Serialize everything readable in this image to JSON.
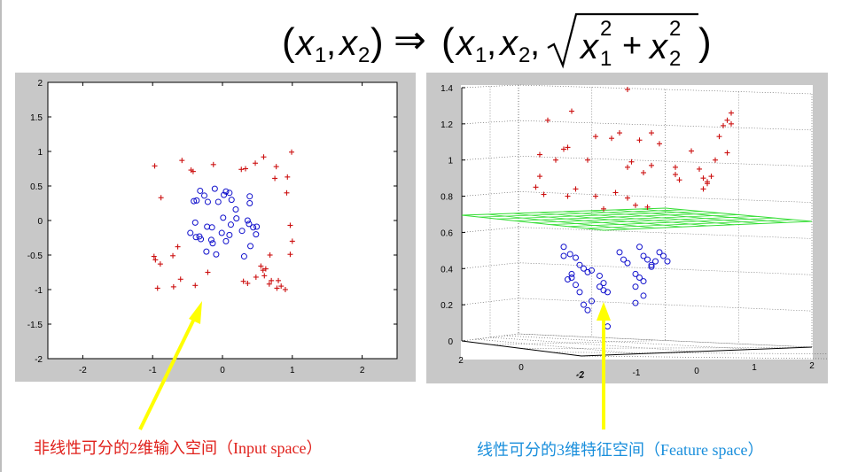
{
  "formula": {
    "lhs_x1": "x",
    "lhs_sub1": "1",
    "lhs_x2": "x",
    "lhs_sub2": "2",
    "arrow": "⇒",
    "rhs_x1": "x",
    "rhs_sub1": "1",
    "rhs_x2": "x",
    "rhs_sub2": "2",
    "sqrt_x1": "x",
    "sqrt_sub1": "1",
    "sqrt_sup1": "2",
    "plus": "+",
    "sqrt_x2": "x",
    "sqrt_sub2": "2",
    "sqrt_sup2": "2"
  },
  "captions": {
    "left": "非线性可分的2维输入空间（Input space）",
    "right": "线性可分的3维特征空间（Feature space）"
  },
  "colors": {
    "plus_marker": "#cc1010",
    "circle_marker": "#1010cc",
    "plane": "#33dd33",
    "arrow": "#ffff00",
    "caption_left": "#e0201b",
    "caption_right": "#1a8fdc"
  },
  "chart_data": [
    {
      "type": "scatter",
      "xlim": [
        -2.5,
        2.5
      ],
      "ylim": [
        -2,
        2
      ],
      "xticks": [
        -2,
        -1,
        0,
        1,
        2
      ],
      "yticks": [
        -2,
        -1.5,
        -1,
        -0.5,
        0,
        0.5,
        1,
        1.5,
        2
      ],
      "xtick_labels": [
        "-2",
        "-1",
        "0",
        "1",
        "2"
      ],
      "ytick_labels": [
        "-2",
        "-1.5",
        "-1",
        "-0.5",
        "0",
        "0.5",
        "1",
        "1.5",
        "2"
      ],
      "grid": false,
      "series": [
        {
          "marker": "plus",
          "points": [
            [
              -0.97,
              0.79
            ],
            [
              -0.88,
              0.33
            ],
            [
              -0.58,
              0.87
            ],
            [
              -0.45,
              0.73
            ],
            [
              -0.42,
              0.71
            ],
            [
              -0.13,
              0.81
            ],
            [
              0.27,
              0.74
            ],
            [
              0.33,
              0.75
            ],
            [
              0.47,
              0.83
            ],
            [
              0.59,
              0.92
            ],
            [
              0.77,
              0.78
            ],
            [
              0.75,
              0.61
            ],
            [
              0.93,
              0.63
            ],
            [
              0.99,
              0.99
            ],
            [
              0.92,
              0.4
            ],
            [
              0.97,
              -0.07
            ],
            [
              1.0,
              -0.3
            ],
            [
              0.97,
              -0.49
            ],
            [
              0.68,
              -0.5
            ],
            [
              -0.98,
              -0.52
            ],
            [
              -0.96,
              -0.57
            ],
            [
              -0.89,
              -0.63
            ],
            [
              -0.71,
              -0.51
            ],
            [
              -0.64,
              -0.38
            ],
            [
              -0.93,
              -0.98
            ],
            [
              -0.7,
              -0.96
            ],
            [
              -0.6,
              -0.85
            ],
            [
              -0.39,
              -0.94
            ],
            [
              -0.21,
              -0.75
            ],
            [
              0.3,
              -0.88
            ],
            [
              0.36,
              -0.91
            ],
            [
              0.48,
              -0.82
            ],
            [
              0.55,
              -0.66
            ],
            [
              0.58,
              -0.72
            ],
            [
              0.6,
              -0.8
            ],
            [
              0.67,
              -0.92
            ],
            [
              0.7,
              -0.87
            ],
            [
              0.8,
              -0.87
            ],
            [
              0.84,
              -0.95
            ],
            [
              0.9,
              -1.0
            ],
            [
              0.78,
              -0.98
            ],
            [
              0.62,
              -0.7
            ]
          ]
        },
        {
          "marker": "circle",
          "points": [
            [
              -0.41,
              0.28
            ],
            [
              -0.37,
              0.29
            ],
            [
              -0.32,
              0.43
            ],
            [
              -0.26,
              0.36
            ],
            [
              -0.21,
              0.27
            ],
            [
              -0.11,
              0.46
            ],
            [
              -0.06,
              0.27
            ],
            [
              0.02,
              0.37
            ],
            [
              0.05,
              0.42
            ],
            [
              0.1,
              0.4
            ],
            [
              0.13,
              0.3
            ],
            [
              0.19,
              0.16
            ],
            [
              0.39,
              0.35
            ],
            [
              0.39,
              0.25
            ],
            [
              -0.46,
              -0.18
            ],
            [
              -0.39,
              -0.03
            ],
            [
              -0.38,
              -0.24
            ],
            [
              -0.33,
              -0.23
            ],
            [
              -0.31,
              -0.27
            ],
            [
              -0.22,
              -0.09
            ],
            [
              -0.15,
              -0.1
            ],
            [
              -0.16,
              -0.28
            ],
            [
              -0.14,
              -0.33
            ],
            [
              -0.23,
              -0.45
            ],
            [
              -0.09,
              -0.49
            ],
            [
              -0.01,
              -0.18
            ],
            [
              0.05,
              -0.3
            ],
            [
              0.1,
              -0.21
            ],
            [
              0.12,
              -0.06
            ],
            [
              0.28,
              -0.15
            ],
            [
              0.38,
              -0.05
            ],
            [
              0.44,
              -0.1
            ],
            [
              0.49,
              -0.09
            ],
            [
              0.48,
              -0.2
            ],
            [
              0.4,
              -0.37
            ],
            [
              0.31,
              -0.52
            ],
            [
              0.01,
              0.04
            ],
            [
              0.2,
              0.03
            ],
            [
              0.36,
              0.0
            ]
          ]
        }
      ]
    },
    {
      "type": "scatter",
      "projection": "3d",
      "xlim": [
        -2,
        2
      ],
      "ylim": [
        -2,
        2
      ],
      "zlim": [
        0,
        1.4
      ],
      "xtick_labels": [
        "-2",
        "-1",
        "0",
        "1",
        "2"
      ],
      "ytick_labels": [
        "2",
        "0",
        "-2"
      ],
      "ztick_labels": [
        "0",
        "0.2",
        "0.4",
        "0.6",
        "0.8",
        "1",
        "1.2",
        "1.4"
      ],
      "zticks": [
        0,
        0.2,
        0.4,
        0.6,
        0.8,
        1.0,
        1.2,
        1.4
      ],
      "grid": true,
      "separating_plane_z": 0.66,
      "series": [
        {
          "marker": "plus",
          "points_projected": [
            [
              -1.7,
              1.22
            ],
            [
              -1.4,
              1.27
            ],
            [
              -0.7,
              1.39
            ],
            [
              -1.8,
              1.03
            ],
            [
              -1.8,
              0.91
            ],
            [
              -1.6,
              1.0
            ],
            [
              -1.5,
              1.06
            ],
            [
              -1.45,
              1.07
            ],
            [
              -1.2,
              1.0
            ],
            [
              -1.1,
              1.13
            ],
            [
              -0.9,
              1.12
            ],
            [
              -0.8,
              1.15
            ],
            [
              -0.55,
              1.11
            ],
            [
              -0.4,
              1.15
            ],
            [
              -0.3,
              1.09
            ],
            [
              -0.5,
              0.93
            ],
            [
              -0.7,
              0.96
            ],
            [
              -0.65,
              0.99
            ],
            [
              -0.4,
              0.97
            ],
            [
              -0.1,
              0.96
            ],
            [
              -0.1,
              0.92
            ],
            [
              -0.05,
              0.89
            ],
            [
              0.1,
              1.05
            ],
            [
              0.2,
              0.95
            ],
            [
              0.25,
              0.9
            ],
            [
              0.3,
              0.88
            ],
            [
              0.35,
              0.91
            ],
            [
              0.4,
              1.0
            ],
            [
              0.45,
              1.13
            ],
            [
              0.5,
              1.19
            ],
            [
              0.55,
              1.22
            ],
            [
              0.6,
              1.2
            ],
            [
              0.6,
              1.26
            ],
            [
              0.55,
              1.04
            ],
            [
              0.3,
              0.87
            ],
            [
              0.25,
              0.84
            ],
            [
              -1.85,
              0.85
            ],
            [
              -1.75,
              0.81
            ],
            [
              -1.45,
              0.8
            ],
            [
              -1.35,
              0.84
            ],
            [
              -1.1,
              0.8
            ],
            [
              -1.0,
              0.73
            ],
            [
              -0.85,
              0.82
            ],
            [
              -0.7,
              0.79
            ],
            [
              -0.6,
              0.75
            ],
            [
              -0.45,
              0.74
            ]
          ]
        },
        {
          "marker": "circle",
          "points_projected": [
            [
              -1.5,
              0.52
            ],
            [
              -1.5,
              0.47
            ],
            [
              -1.42,
              0.48
            ],
            [
              -1.35,
              0.46
            ],
            [
              -1.3,
              0.42
            ],
            [
              -1.25,
              0.4
            ],
            [
              -1.2,
              0.38
            ],
            [
              -1.15,
              0.39
            ],
            [
              -1.4,
              0.35
            ],
            [
              -1.35,
              0.31
            ],
            [
              -1.3,
              0.27
            ],
            [
              -1.4,
              0.37
            ],
            [
              -1.45,
              0.34
            ],
            [
              -1.25,
              0.2
            ],
            [
              -1.2,
              0.17
            ],
            [
              -1.15,
              0.22
            ],
            [
              -1.05,
              0.36
            ],
            [
              -1.0,
              0.28
            ],
            [
              -1.0,
              0.32
            ],
            [
              -1.05,
              0.3
            ],
            [
              -0.95,
              0.27
            ],
            [
              -0.8,
              0.49
            ],
            [
              -0.75,
              0.45
            ],
            [
              -0.7,
              0.43
            ],
            [
              -0.55,
              0.52
            ],
            [
              -0.5,
              0.47
            ],
            [
              -0.45,
              0.45
            ],
            [
              -0.4,
              0.42
            ],
            [
              -0.35,
              0.44
            ],
            [
              -0.3,
              0.49
            ],
            [
              -0.25,
              0.47
            ],
            [
              -0.6,
              0.37
            ],
            [
              -0.55,
              0.35
            ],
            [
              -0.5,
              0.33
            ],
            [
              -0.6,
              0.3
            ],
            [
              -0.5,
              0.25
            ],
            [
              -0.6,
              0.21
            ],
            [
              -0.4,
              0.41
            ],
            [
              -0.95,
              0.08
            ],
            [
              -0.2,
              0.44
            ]
          ]
        }
      ]
    }
  ]
}
